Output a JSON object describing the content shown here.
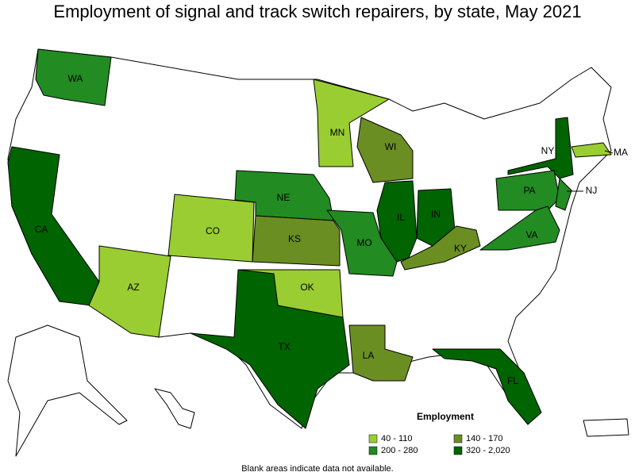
{
  "title": "Employment of signal and track switch repairers, by state, May 2021",
  "legend": {
    "title": "Employment",
    "items": [
      {
        "label": "40 - 110",
        "color": "#9acd32"
      },
      {
        "label": "140 - 170",
        "color": "#6b8e23"
      },
      {
        "label": "200 - 280",
        "color": "#228b22"
      },
      {
        "label": "320 - 2,020",
        "color": "#006400"
      }
    ]
  },
  "states": [
    {
      "label": "WA",
      "range": 2
    },
    {
      "label": "CA",
      "range": 3
    },
    {
      "label": "AZ",
      "range": 0
    },
    {
      "label": "CO",
      "range": 0
    },
    {
      "label": "NE",
      "range": 2
    },
    {
      "label": "KS",
      "range": 1
    },
    {
      "label": "OK",
      "range": 0
    },
    {
      "label": "TX",
      "range": 3
    },
    {
      "label": "MN",
      "range": 0
    },
    {
      "label": "WI",
      "range": 1
    },
    {
      "label": "MO",
      "range": 2
    },
    {
      "label": "LA",
      "range": 1
    },
    {
      "label": "IL",
      "range": 3
    },
    {
      "label": "IN",
      "range": 3
    },
    {
      "label": "KY",
      "range": 1
    },
    {
      "label": "FL",
      "range": 3
    },
    {
      "label": "NY",
      "range": 3
    },
    {
      "label": "PA",
      "range": 2
    },
    {
      "label": "VA",
      "range": 2
    },
    {
      "label": "NJ",
      "range": 2
    },
    {
      "label": "MA",
      "range": 0
    }
  ],
  "note": "Blank areas indicate data not available."
}
